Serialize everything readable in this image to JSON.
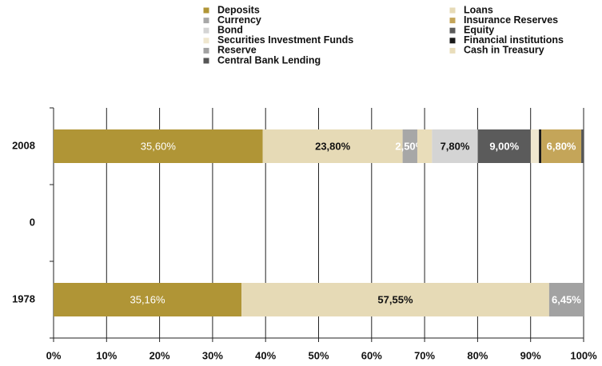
{
  "chart_data": {
    "type": "stacked-barh",
    "stacking": "percent",
    "categories": [
      "2008",
      "0",
      "1978"
    ],
    "series": [
      {
        "name": "Deposits",
        "color": "#b09536",
        "values": [
          35.6,
          null,
          35.16
        ],
        "value_labels": [
          "35,60%",
          null,
          "35,16%"
        ]
      },
      {
        "name": "Loans",
        "color": "#e6dab6",
        "values": [
          23.8,
          null,
          57.55
        ],
        "value_labels": [
          "23,80%",
          null,
          "57,55%"
        ]
      },
      {
        "name": "Currency",
        "color": "#a7a7a7",
        "values": [
          2.5,
          null,
          null
        ],
        "value_labels": [
          "2,50%",
          null,
          null
        ]
      },
      {
        "name": "Cash in Treasury",
        "color": "#e9ddba",
        "values": [
          2.5,
          null,
          null
        ]
      },
      {
        "name": "Bond",
        "color": "#d4d4d4",
        "values": [
          7.8,
          null,
          null
        ],
        "value_labels": [
          "7,80%",
          null,
          null
        ]
      },
      {
        "name": "Equity",
        "color": "#5b5b5b",
        "values": [
          9.0,
          null,
          null
        ],
        "value_labels": [
          "9,00%",
          null,
          null
        ]
      },
      {
        "name": "Securities Investment Funds",
        "color": "#efe7cf",
        "values": [
          1.4,
          null,
          null
        ]
      },
      {
        "name": "Financial institutions",
        "color": "#1a1a1a",
        "values": [
          0.4,
          null,
          null
        ]
      },
      {
        "name": "Insurance Reserves",
        "color": "#c4a559",
        "values": [
          6.8,
          null,
          null
        ],
        "value_labels": [
          "6,80%",
          null,
          null
        ]
      },
      {
        "name": "Reserve",
        "color": "#a2a2a2",
        "values": [
          null,
          null,
          6.45
        ],
        "value_labels": [
          null,
          null,
          "6,45%"
        ]
      },
      {
        "name": "Central Bank Lending",
        "color": "#565656",
        "values": [
          0.4,
          null,
          null
        ]
      }
    ],
    "legend_order": [
      0,
      2,
      4,
      6,
      9,
      10,
      1,
      8,
      5,
      7,
      3
    ],
    "xlim": [
      0,
      100
    ],
    "xticks": [
      {
        "value": 0,
        "label": "0%"
      },
      {
        "value": 10,
        "label": "10%"
      },
      {
        "value": 20,
        "label": "20%"
      },
      {
        "value": 30,
        "label": "30%"
      },
      {
        "value": 40,
        "label": "40%"
      },
      {
        "value": 50,
        "label": "50%"
      },
      {
        "value": 60,
        "label": "60%"
      },
      {
        "value": 70,
        "label": "70%"
      },
      {
        "value": 80,
        "label": "80%"
      },
      {
        "value": 90,
        "label": "90%"
      },
      {
        "value": 100,
        "label": "100%"
      }
    ],
    "grid": true,
    "legend": "top"
  }
}
